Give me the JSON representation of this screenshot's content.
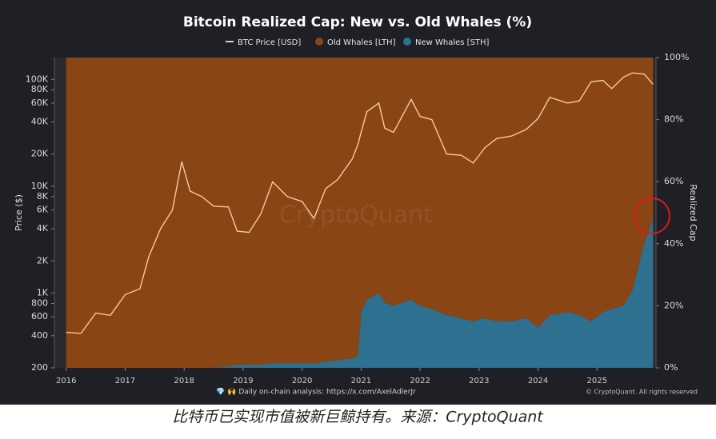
{
  "chart_data": {
    "type": "area",
    "title": "Bitcoin Realized Cap: New vs. Old Whales (%)",
    "ylabel": "Price ($)",
    "y2label": "Realized Cap",
    "watermark": "CryptoQuant",
    "footer_left": "💎 🙌 Daily on-chain analysis: https://x.com/AxelAdlerJr",
    "footer_right": "© CryptoQuant. All rights reserved",
    "caption": "比特币已实现市值被新巨鲸持有。来源：CryptoQuant",
    "log_scale_y": true,
    "xlim": [
      2015.8,
      2026.0
    ],
    "xticks": [
      2016,
      2017,
      2018,
      2019,
      2020,
      2021,
      2022,
      2023,
      2024,
      2025
    ],
    "ylim": [
      200,
      160000
    ],
    "yticks": [
      200,
      400,
      600,
      800,
      {
        "value": 1000,
        "label": "1K"
      },
      {
        "value": 2000,
        "label": "2K"
      },
      {
        "value": 4000,
        "label": "4K"
      },
      {
        "value": 6000,
        "label": "6K"
      },
      {
        "value": 8000,
        "label": "8K"
      },
      {
        "value": 10000,
        "label": "10K"
      },
      {
        "value": 20000,
        "label": "20K"
      },
      {
        "value": 40000,
        "label": "40K"
      },
      {
        "value": 60000,
        "label": "60K"
      },
      {
        "value": 80000,
        "label": "80K"
      },
      {
        "value": 100000,
        "label": "100K"
      }
    ],
    "y2lim": [
      0,
      100
    ],
    "y2ticks": [
      {
        "value": 0,
        "label": "0%"
      },
      {
        "value": 20,
        "label": "20%"
      },
      {
        "value": 40,
        "label": "40%"
      },
      {
        "value": 60,
        "label": "60%"
      },
      {
        "value": 80,
        "label": "80%"
      },
      {
        "value": 100,
        "label": "100%"
      }
    ],
    "x": [
      2016.0,
      2016.25,
      2016.5,
      2016.75,
      2017.0,
      2017.25,
      2017.4,
      2017.6,
      2017.8,
      2017.96,
      2018.1,
      2018.3,
      2018.5,
      2018.75,
      2018.9,
      2019.1,
      2019.3,
      2019.5,
      2019.75,
      2020.0,
      2020.2,
      2020.4,
      2020.6,
      2020.85,
      2020.95,
      2021.0,
      2021.1,
      2021.3,
      2021.4,
      2021.55,
      2021.85,
      2022.0,
      2022.2,
      2022.45,
      2022.7,
      2022.9,
      2023.1,
      2023.3,
      2023.55,
      2023.8,
      2024.0,
      2024.2,
      2024.5,
      2024.7,
      2024.9,
      2025.1,
      2025.25,
      2025.45,
      2025.6,
      2025.8,
      2025.95
    ],
    "series": [
      {
        "name": "BTC Price [USD]",
        "color": "#f6c9a2",
        "axis": "y",
        "values": [
          430,
          420,
          650,
          620,
          970,
          1100,
          2200,
          4000,
          6000,
          17000,
          9000,
          8000,
          6500,
          6400,
          3800,
          3700,
          5500,
          11000,
          8000,
          7200,
          5000,
          9500,
          11500,
          18000,
          25000,
          32000,
          50000,
          60000,
          35000,
          32000,
          65000,
          45000,
          42000,
          20000,
          19500,
          16500,
          23000,
          28000,
          29500,
          34000,
          43000,
          68000,
          60000,
          63000,
          95000,
          98000,
          82000,
          105000,
          115000,
          112000,
          90000
        ]
      },
      {
        "name": "Old Whales [LTH]",
        "color": "#8a4515",
        "axis": "y2",
        "values": [
          100,
          100,
          100,
          100,
          100,
          100,
          100,
          100,
          100,
          100,
          100,
          100,
          100,
          99.5,
          99,
          99,
          99,
          98.5,
          98.5,
          98.5,
          98.5,
          98,
          97.5,
          97,
          96,
          82,
          78,
          76,
          79,
          80,
          78,
          80,
          81,
          83,
          84,
          85,
          84,
          85,
          85,
          84,
          87,
          83,
          82,
          83,
          85,
          82,
          81,
          80,
          75,
          60,
          52
        ]
      },
      {
        "name": "New Whales [STH]",
        "color": "#2e7090",
        "axis": "y2",
        "values": [
          0,
          0,
          0,
          0,
          0,
          0,
          0,
          0,
          0,
          0,
          0,
          0,
          0,
          0.5,
          1,
          1,
          1,
          1.5,
          1.5,
          1.5,
          1.5,
          2,
          2.5,
          3,
          4,
          18,
          22,
          24,
          21,
          20,
          22,
          20,
          19,
          17,
          16,
          15,
          16,
          15,
          15,
          16,
          13,
          17,
          18,
          17,
          15,
          18,
          19,
          20,
          25,
          40,
          48
        ]
      }
    ]
  }
}
